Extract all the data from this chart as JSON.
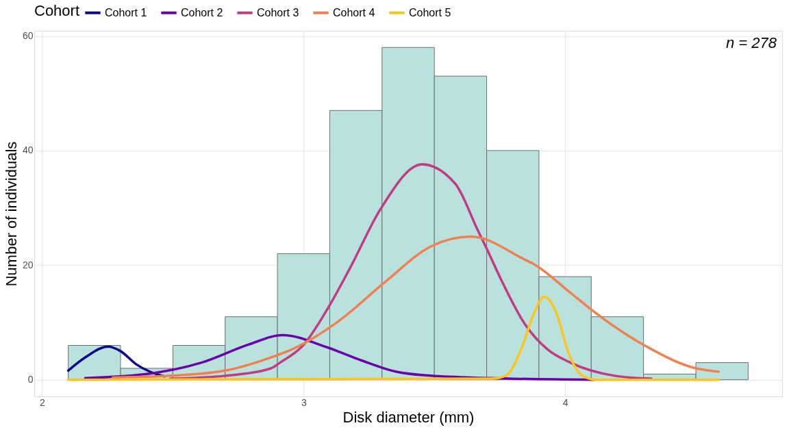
{
  "chart_data": {
    "type": "histogram",
    "xlabel": "Disk diameter (mm)",
    "ylabel": "Number of individuals",
    "legend_title": "Cohort",
    "legend": "top",
    "grid": true,
    "annotations": [
      "n = 278"
    ],
    "bins": [
      2.1,
      2.3,
      2.5,
      2.7,
      2.9,
      3.1,
      3.3,
      3.5,
      3.7,
      3.9,
      4.1,
      4.3,
      4.5,
      4.7
    ],
    "values": [
      6,
      2,
      6,
      11,
      22,
      47,
      58,
      53,
      40,
      18,
      11,
      1,
      3
    ],
    "color": "#b9e1de",
    "xlim": [
      1.97,
      4.83
    ],
    "xticks": [
      2,
      3,
      4
    ],
    "ylim": [
      -2.9,
      60.9
    ],
    "yticks": [
      0,
      20,
      40,
      60
    ],
    "series": [
      {
        "name": "Cohort 1",
        "type": "line",
        "color": "#0d0887",
        "x": [
          2.1,
          2.165,
          2.253,
          2.3,
          2.36,
          2.413,
          2.467
        ],
        "values": [
          1.6,
          3.9,
          5.8,
          5.0,
          2.7,
          1.4,
          0.6
        ]
      },
      {
        "name": "Cohort 2",
        "type": "line",
        "color": "#6a00a8",
        "x": [
          2.165,
          2.43,
          2.61,
          2.787,
          2.92,
          3.088,
          3.22,
          3.355,
          3.488,
          3.71,
          4.11
        ],
        "values": [
          0.3,
          1.2,
          3.0,
          6.1,
          7.8,
          5.7,
          3.4,
          1.4,
          0.7,
          0.3,
          0
        ]
      },
      {
        "name": "Cohort 3",
        "type": "line",
        "color": "#c13b82",
        "x": [
          2.49,
          2.7,
          2.875,
          2.91,
          3.0,
          3.088,
          3.18,
          3.293,
          3.453,
          3.58,
          3.667,
          3.7,
          3.755,
          3.845,
          3.933,
          4.02,
          4.19,
          4.33
        ],
        "values": [
          0.2,
          0.7,
          2.0,
          3.0,
          6.1,
          12.1,
          19.7,
          29.7,
          37.6,
          34.2,
          26,
          22.9,
          17.5,
          9.8,
          5.3,
          3.0,
          0.7,
          0.2
        ]
      },
      {
        "name": "Cohort 4",
        "type": "line",
        "color": "#f0804f",
        "x": [
          2.27,
          2.49,
          2.7,
          2.875,
          2.955,
          3.133,
          3.31,
          3.488,
          3.64,
          3.845,
          3.88,
          4.02,
          4.093,
          4.3,
          4.5,
          4.587
        ],
        "values": [
          0.4,
          0.7,
          1.6,
          3.9,
          5.3,
          10.2,
          17.0,
          23.3,
          25.0,
          21.0,
          20.2,
          15.2,
          12.5,
          6.1,
          2.0,
          1.4
        ]
      },
      {
        "name": "Cohort 5",
        "type": "line",
        "color": "#fcc41e",
        "x": [
          2.1,
          3.72,
          3.773,
          3.835,
          3.88,
          3.92,
          3.968,
          4.013,
          4.067,
          4.12,
          4.587
        ],
        "values": [
          0,
          0.2,
          0.7,
          5.7,
          11.5,
          14.5,
          11.5,
          4.7,
          0.7,
          0,
          0
        ]
      }
    ]
  }
}
